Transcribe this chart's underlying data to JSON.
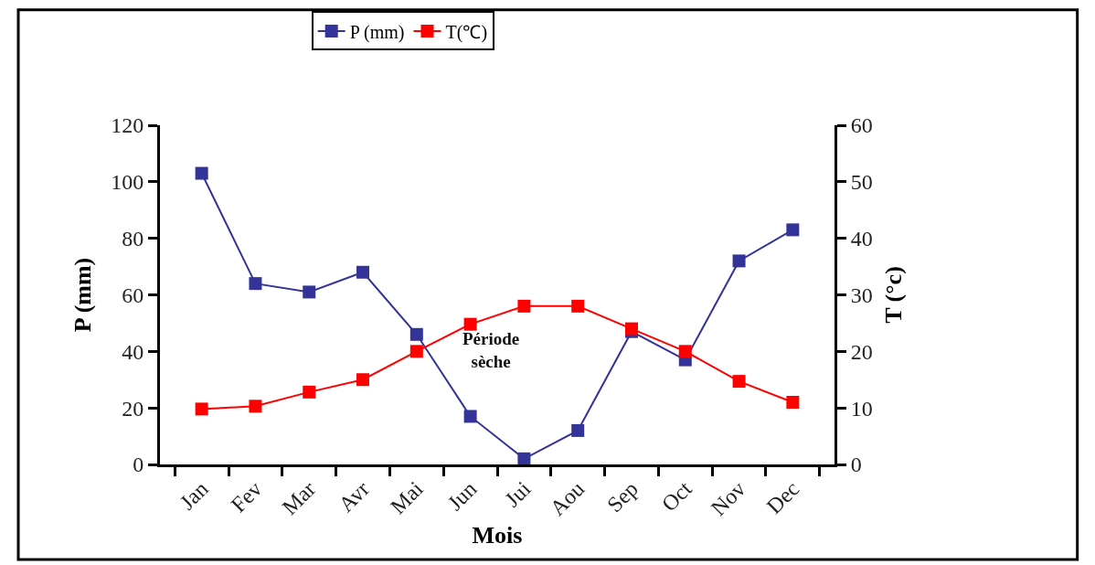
{
  "chart_data": {
    "type": "line",
    "categories": [
      "Jan",
      "Fev",
      "Mar",
      "Avr",
      "Mai",
      "Jun",
      "Jui",
      "Aou",
      "Sep",
      "Oct",
      "Nov",
      "Dec"
    ],
    "series": [
      {
        "name": "P (mm)",
        "color": "#333399",
        "values": [
          103,
          64,
          61,
          68,
          46,
          17,
          2,
          12,
          47,
          37,
          72,
          83
        ]
      },
      {
        "name": "T(℃)",
        "color": "#ff0000",
        "axis": "y2",
        "values": [
          9.8,
          10.3,
          12.8,
          15,
          20,
          24.8,
          28,
          28,
          24,
          20,
          14.7,
          11
        ]
      }
    ],
    "xlabel": "Mois",
    "ylabel": "P (mm)",
    "y2label": "T (°c)",
    "ylim": [
      0,
      120
    ],
    "yticks": [
      0,
      20,
      40,
      60,
      80,
      100,
      120
    ],
    "y2lim": [
      0,
      60
    ],
    "y2ticks": [
      0,
      10,
      20,
      30,
      40,
      50,
      60
    ],
    "annotations": [
      "Période\nsèche"
    ],
    "marker": "square",
    "line_style": "solid",
    "legend": "top"
  }
}
